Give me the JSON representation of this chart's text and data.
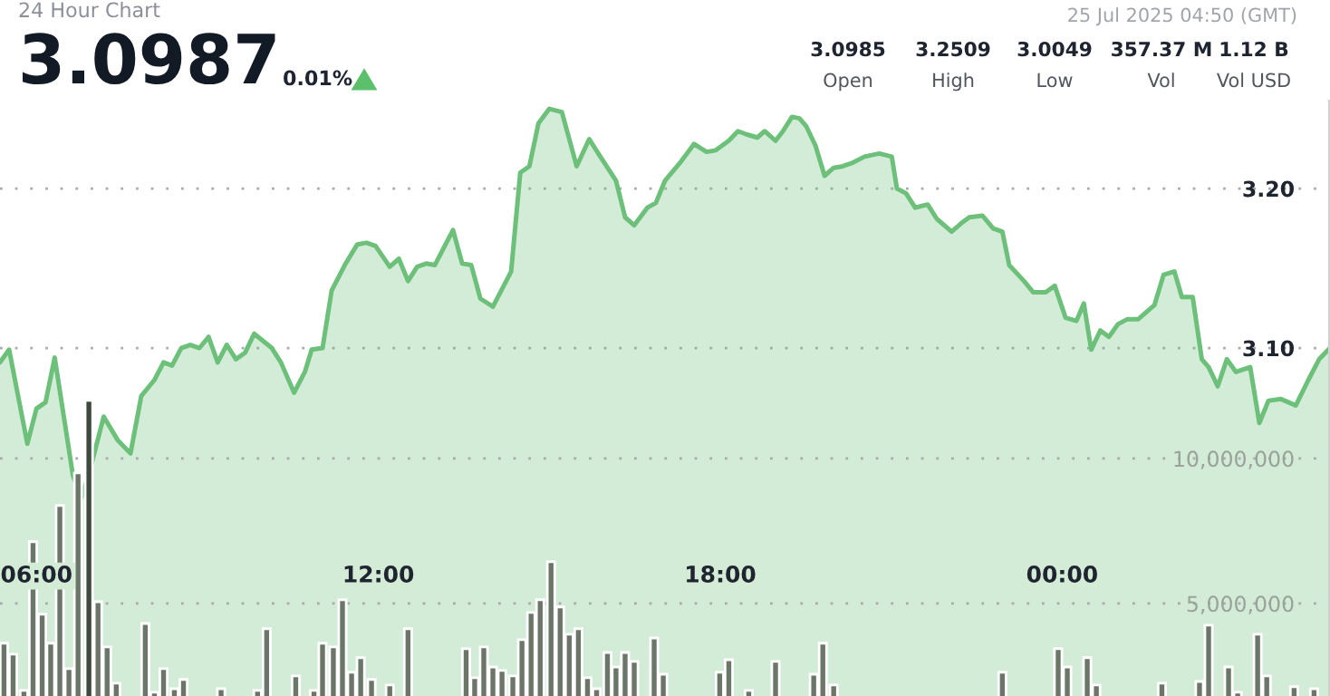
{
  "chart_data": {
    "type": "area",
    "title": "24 Hour Chart",
    "subtitle": "3.0987",
    "annotations": [
      "0.01%",
      "25 Jul 2025 04:50 (GMT)",
      "3.0985",
      "Open",
      "3.2509",
      "High",
      "3.0049",
      "Low",
      "357.37 M",
      "Vol",
      "1.12 B",
      "Vol USD"
    ],
    "xlim": [
      5.36,
      28.7
    ],
    "xticks": [
      {
        "value": 6,
        "label": "06:00"
      },
      {
        "value": 12,
        "label": "12:00"
      },
      {
        "value": 18,
        "label": "18:00"
      },
      {
        "value": 24,
        "label": "00:00"
      }
    ],
    "ylim": [
      2.8818,
      3.2546
    ],
    "yticks": [
      {
        "value": 3.1,
        "label": "3.10"
      },
      {
        "value": 3.2,
        "label": "3.20"
      }
    ],
    "y2lim": [
      1810000,
      22310000
    ],
    "y2ticks": [
      {
        "value": 5000000,
        "label": "5,000,000"
      },
      {
        "value": 10000000,
        "label": "10,000,000"
      }
    ],
    "grid": "y",
    "series": [
      {
        "color": "#6cc07a",
        "x": [
          5.36,
          5.52,
          5.84,
          6.0,
          6.16,
          6.32,
          6.64,
          6.79,
          6.95,
          7.18,
          7.43,
          7.65,
          7.84,
          8.07,
          8.23,
          8.38,
          8.54,
          8.7,
          8.86,
          9.02,
          9.18,
          9.34,
          9.5,
          9.66,
          9.82,
          10.13,
          10.29,
          10.52,
          10.71,
          10.83,
          11.02,
          11.18,
          11.41,
          11.63,
          11.79,
          11.95,
          12.2,
          12.36,
          12.52,
          12.68,
          12.84,
          12.99,
          13.31,
          13.47,
          13.63,
          13.79,
          14.01,
          14.33,
          14.49,
          14.65,
          14.81,
          15.0,
          15.22,
          15.48,
          15.7,
          15.86,
          16.17,
          16.33,
          16.49,
          16.72,
          16.87,
          17.03,
          17.29,
          17.54,
          17.76,
          17.92,
          18.15,
          18.31,
          18.46,
          18.65,
          18.78,
          18.97,
          19.1,
          19.26,
          19.39,
          19.51,
          19.67,
          19.83,
          19.99,
          20.15,
          20.31,
          20.53,
          20.79,
          21.01,
          21.1,
          21.26,
          21.42,
          21.64,
          21.8,
          22.06,
          22.22,
          22.37,
          22.6,
          22.79,
          22.95,
          23.07,
          23.33,
          23.49,
          23.71,
          23.87,
          24.06,
          24.25,
          24.38,
          24.51,
          24.67,
          24.82,
          24.98,
          25.14,
          25.33,
          25.46,
          25.62,
          25.78,
          25.97,
          26.1,
          26.29,
          26.45,
          26.57,
          26.73,
          26.89,
          27.05,
          27.3,
          27.46,
          27.62,
          27.84,
          28.1,
          28.32,
          28.51,
          28.7
        ],
        "values": [
          3.091,
          3.099,
          3.04,
          3.062,
          3.066,
          3.094,
          3.02,
          3.006,
          3.025,
          3.057,
          3.042,
          3.034,
          3.07,
          3.08,
          3.091,
          3.089,
          3.1,
          3.102,
          3.1,
          3.107,
          3.091,
          3.102,
          3.093,
          3.097,
          3.109,
          3.1,
          3.091,
          3.072,
          3.085,
          3.099,
          3.1,
          3.136,
          3.152,
          3.165,
          3.166,
          3.164,
          3.151,
          3.156,
          3.142,
          3.151,
          3.153,
          3.152,
          3.174,
          3.153,
          3.152,
          3.131,
          3.126,
          3.148,
          3.21,
          3.214,
          3.241,
          3.25,
          3.248,
          3.214,
          3.231,
          3.222,
          3.205,
          3.182,
          3.177,
          3.188,
          3.191,
          3.205,
          3.216,
          3.228,
          3.223,
          3.224,
          3.23,
          3.236,
          3.234,
          3.232,
          3.236,
          3.23,
          3.236,
          3.245,
          3.244,
          3.239,
          3.227,
          3.208,
          3.213,
          3.214,
          3.216,
          3.22,
          3.222,
          3.22,
          3.2,
          3.197,
          3.188,
          3.19,
          3.181,
          3.173,
          3.178,
          3.182,
          3.183,
          3.175,
          3.173,
          3.152,
          3.142,
          3.135,
          3.135,
          3.139,
          3.119,
          3.117,
          3.128,
          3.099,
          3.111,
          3.107,
          3.115,
          3.118,
          3.118,
          3.122,
          3.127,
          3.146,
          3.148,
          3.132,
          3.132,
          3.093,
          3.088,
          3.076,
          3.093,
          3.085,
          3.088,
          3.053,
          3.067,
          3.068,
          3.064,
          3.08,
          3.093,
          3.1
        ]
      },
      {
        "type": "bar",
        "axis": "y2",
        "x": [
          5.43,
          5.59,
          5.78,
          5.94,
          6.1,
          6.25,
          6.41,
          6.57,
          6.73,
          6.92,
          7.08,
          7.24,
          7.4,
          7.91,
          8.07,
          8.23,
          8.42,
          8.58,
          9.24,
          9.88,
          10.04,
          10.55,
          10.87,
          11.02,
          11.21,
          11.37,
          11.53,
          11.69,
          11.88,
          12.2,
          12.52,
          13.38,
          13.54,
          13.69,
          13.85,
          14.01,
          14.17,
          14.36,
          14.52,
          14.68,
          14.84,
          15.03,
          15.19,
          15.35,
          15.51,
          15.67,
          15.83,
          16.02,
          16.17,
          16.33,
          16.49,
          16.84,
          17.0,
          17.99,
          18.15,
          18.5,
          18.97,
          19.64,
          19.8,
          19.99,
          20.98,
          22.95,
          23.93,
          24.09,
          24.44,
          24.6,
          25.75,
          26.41,
          26.57,
          26.92,
          27.08,
          27.43,
          27.59,
          28.07,
          28.42
        ],
        "values": [
          3630000,
          3250000,
          2000000,
          7130000,
          4630000,
          3630000,
          8380000,
          2750000,
          9500000,
          12000000,
          5060000,
          3500000,
          2250000,
          4310000,
          1940000,
          2750000,
          2060000,
          2380000,
          2060000,
          2000000,
          4130000,
          2500000,
          2000000,
          3630000,
          3500000,
          5130000,
          2630000,
          3130000,
          2380000,
          2190000,
          4130000,
          null,
          3440000,
          2440000,
          3500000,
          2810000,
          2690000,
          2500000,
          3750000,
          4690000,
          5130000,
          6440000,
          4880000,
          3940000,
          4130000,
          2440000,
          2060000,
          3310000,
          2810000,
          3310000,
          3000000,
          3810000,
          2560000,
          2630000,
          3060000,
          2000000,
          3000000,
          2560000,
          3630000,
          2190000,
          null,
          2630000,
          3440000,
          2810000,
          3130000,
          2190000,
          2250000,
          2310000,
          4250000,
          2810000,
          1940000,
          3940000,
          2500000,
          2130000,
          2060000
        ],
        "colors": [
          "#6b7668",
          "#6b7668",
          "#6b7668",
          "#6b7668",
          "#6b7668",
          "#6b7668",
          "#6b7668",
          "#6b7668",
          "#6b7668",
          "#3f4a3f",
          "#6b7668",
          "#6b7668",
          "#6b7668",
          "#6b7668",
          "#6b7668",
          "#6b7668",
          "#6b7668",
          "#6b7668",
          "#6b7668",
          "#6b7668",
          "#6b7668",
          "#6b7668",
          "#6b7668",
          "#6b7668",
          "#6b7668",
          "#6b7668",
          "#6b7668",
          "#6b7668",
          "#6b7668",
          "#6b7668",
          "#6b7668",
          "#6b7668",
          "#6b7668",
          "#6b7668",
          "#6b7668",
          "#6b7668",
          "#6b7668",
          "#6b7668",
          "#6b7668",
          "#6b7668",
          "#6b7668",
          "#6b7668",
          "#6b7668",
          "#6b7668",
          "#6b7668",
          "#6b7668",
          "#6b7668",
          "#6b7668",
          "#6b7668",
          "#6b7668",
          "#6b7668",
          "#6b7668",
          "#6b7668",
          "#6b7668",
          "#6b7668",
          "#6b7668",
          "#6b7668",
          "#6b7668",
          "#6b7668",
          "#6b7668",
          "#6b7668",
          "#6b7668",
          "#6b7668",
          "#6b7668",
          "#6b7668",
          "#6b7668",
          "#6b7668",
          "#6b7668",
          "#6b7668",
          "#6b7668",
          "#6b7668",
          "#6b7668",
          "#6b7668",
          "#6b7668",
          "#6b7668"
        ]
      }
    ]
  }
}
